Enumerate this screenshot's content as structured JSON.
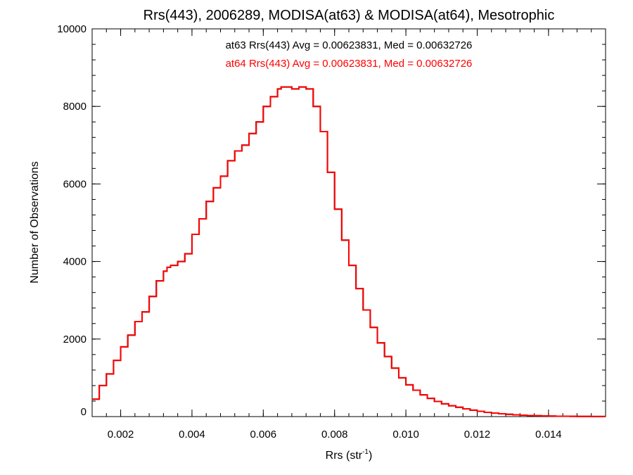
{
  "chart_data": {
    "type": "line",
    "step": true,
    "title": "Rrs(443), 2006289, MODISA(at63) & MODISA(at64), Mesotrophic",
    "xlabel_main": "Rrs (str",
    "xlabel_sup": "-1",
    "xlabel_close": ")",
    "ylabel": "Number of Observations",
    "xlim": [
      0.0012,
      0.0156
    ],
    "ylim": [
      0,
      10000
    ],
    "x_ticks": [
      0.002,
      0.004,
      0.006,
      0.008,
      0.01,
      0.012,
      0.014
    ],
    "x_tick_labels": [
      "0.002",
      "0.004",
      "0.006",
      "0.008",
      "0.010",
      "0.012",
      "0.014"
    ],
    "y_ticks": [
      0,
      2000,
      4000,
      6000,
      8000,
      10000
    ],
    "y_tick_labels": [
      "0",
      "2000",
      "4000",
      "6000",
      "8000",
      "10000"
    ],
    "annotations": [
      {
        "text": "at63 Rrs(443) Avg = 0.00623831, Med = 0.00632726",
        "color": "#000000"
      },
      {
        "text": "at64 Rrs(443) Avg = 0.00623831, Med = 0.00632726",
        "color": "#ff0000"
      }
    ],
    "series": [
      {
        "name": "at63",
        "color": "#000000",
        "x": [
          0.0012,
          0.0014,
          0.0016,
          0.0018,
          0.002,
          0.0022,
          0.0024,
          0.0026,
          0.0028,
          0.003,
          0.0032,
          0.0033,
          0.0034,
          0.0036,
          0.0038,
          0.004,
          0.0042,
          0.0044,
          0.0046,
          0.0048,
          0.005,
          0.0052,
          0.0054,
          0.0056,
          0.0058,
          0.006,
          0.0062,
          0.0064,
          0.0065,
          0.0066,
          0.0068,
          0.007,
          0.0072,
          0.0074,
          0.0076,
          0.0078,
          0.008,
          0.0082,
          0.0084,
          0.0086,
          0.0088,
          0.009,
          0.0092,
          0.0094,
          0.0096,
          0.0098,
          0.01,
          0.0102,
          0.0104,
          0.0106,
          0.0108,
          0.011,
          0.0112,
          0.0114,
          0.0116,
          0.0118,
          0.012,
          0.0122,
          0.0124,
          0.0126,
          0.0128,
          0.013,
          0.0132,
          0.0134,
          0.0136,
          0.0138,
          0.014,
          0.0142,
          0.0144,
          0.0146,
          0.0148,
          0.015,
          0.0152,
          0.0154,
          0.0156
        ],
        "y": [
          450,
          800,
          1100,
          1450,
          1800,
          2100,
          2450,
          2700,
          3100,
          3500,
          3750,
          3850,
          3900,
          4000,
          4200,
          4700,
          5100,
          5550,
          5900,
          6200,
          6600,
          6850,
          7000,
          7300,
          7600,
          8000,
          8250,
          8450,
          8500,
          8500,
          8450,
          8500,
          8450,
          8000,
          7350,
          6300,
          5350,
          4550,
          3900,
          3300,
          2750,
          2300,
          1900,
          1550,
          1250,
          1000,
          820,
          680,
          560,
          470,
          390,
          330,
          280,
          240,
          200,
          165,
          135,
          110,
          90,
          72,
          58,
          46,
          36,
          28,
          22,
          17,
          13,
          10,
          8,
          6,
          5,
          4,
          3,
          2,
          2
        ]
      },
      {
        "name": "at64",
        "color": "#ff0000",
        "x": [
          0.0012,
          0.0014,
          0.0016,
          0.0018,
          0.002,
          0.0022,
          0.0024,
          0.0026,
          0.0028,
          0.003,
          0.0032,
          0.0033,
          0.0034,
          0.0036,
          0.0038,
          0.004,
          0.0042,
          0.0044,
          0.0046,
          0.0048,
          0.005,
          0.0052,
          0.0054,
          0.0056,
          0.0058,
          0.006,
          0.0062,
          0.0064,
          0.0065,
          0.0066,
          0.0068,
          0.007,
          0.0072,
          0.0074,
          0.0076,
          0.0078,
          0.008,
          0.0082,
          0.0084,
          0.0086,
          0.0088,
          0.009,
          0.0092,
          0.0094,
          0.0096,
          0.0098,
          0.01,
          0.0102,
          0.0104,
          0.0106,
          0.0108,
          0.011,
          0.0112,
          0.0114,
          0.0116,
          0.0118,
          0.012,
          0.0122,
          0.0124,
          0.0126,
          0.0128,
          0.013,
          0.0132,
          0.0134,
          0.0136,
          0.0138,
          0.014,
          0.0142,
          0.0144,
          0.0146,
          0.0148,
          0.015,
          0.0152,
          0.0154,
          0.0156
        ],
        "y": [
          450,
          800,
          1100,
          1450,
          1800,
          2100,
          2450,
          2700,
          3100,
          3500,
          3750,
          3850,
          3900,
          4000,
          4200,
          4700,
          5100,
          5550,
          5900,
          6200,
          6600,
          6850,
          7000,
          7300,
          7600,
          8000,
          8250,
          8450,
          8500,
          8500,
          8450,
          8500,
          8450,
          8000,
          7350,
          6300,
          5350,
          4550,
          3900,
          3300,
          2750,
          2300,
          1900,
          1550,
          1250,
          1000,
          820,
          680,
          560,
          470,
          390,
          330,
          280,
          240,
          200,
          165,
          135,
          110,
          90,
          72,
          58,
          46,
          36,
          28,
          22,
          17,
          13,
          10,
          8,
          6,
          5,
          4,
          3,
          2,
          2
        ]
      }
    ]
  }
}
